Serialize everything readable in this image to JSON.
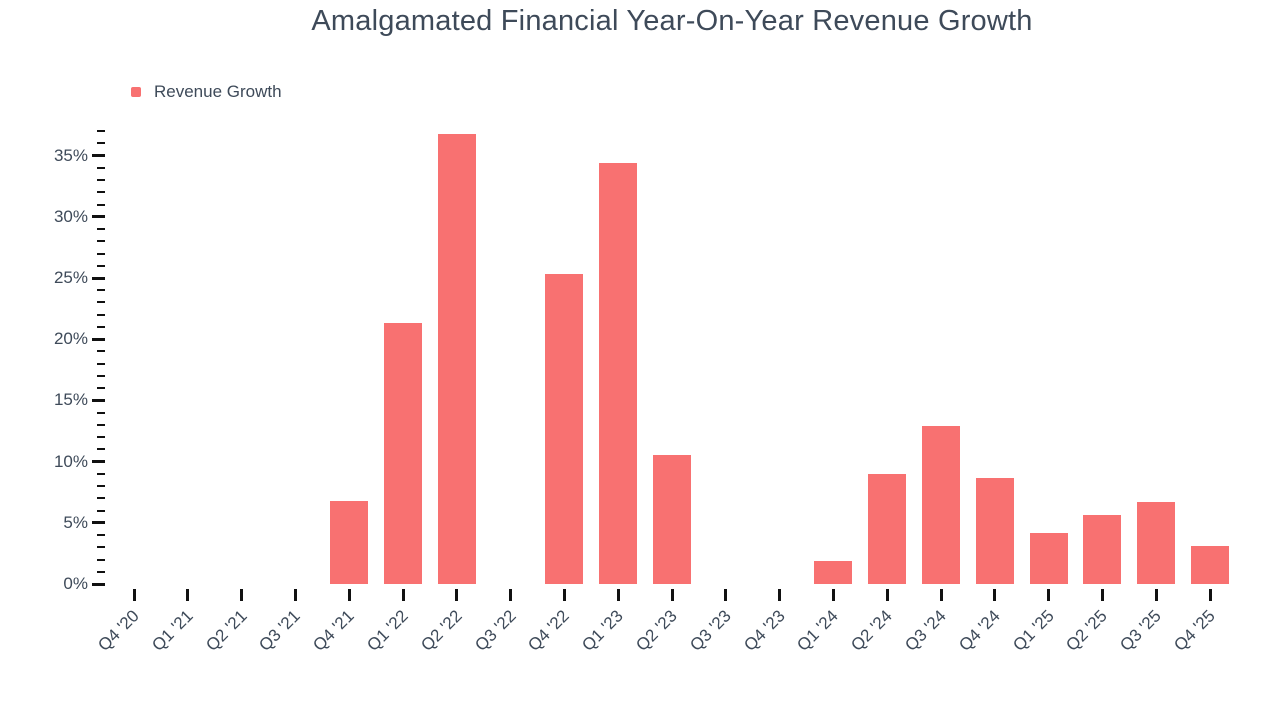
{
  "title": "Amalgamated Financial Year-On-Year Revenue Growth",
  "legend": {
    "label": "Revenue Growth",
    "position": "top-left"
  },
  "colors": {
    "bar": "#f87171",
    "text": "#3e4a59",
    "tick": "#111111",
    "background": "#ffffff"
  },
  "y_axis": {
    "unit": "%",
    "min": 0,
    "max": 37,
    "major_step": 5,
    "minor_step": 1,
    "major_tick_labels": [
      "0%",
      "5%",
      "10%",
      "15%",
      "20%",
      "25%",
      "30%",
      "35%"
    ]
  },
  "chart_data": {
    "type": "bar",
    "title": "Amalgamated Financial Year-On-Year Revenue Growth",
    "xlabel": "",
    "ylabel": "",
    "unit": "%",
    "ylim": [
      0,
      37
    ],
    "grid": false,
    "legend_position": "top-left",
    "categories": [
      "Q4 '20",
      "Q1 '21",
      "Q2 '21",
      "Q3 '21",
      "Q4 '21",
      "Q1 '22",
      "Q2 '22",
      "Q3 '22",
      "Q4 '22",
      "Q1 '23",
      "Q2 '23",
      "Q3 '23",
      "Q4 '23",
      "Q1 '24",
      "Q2 '24",
      "Q3 '24",
      "Q4 '24",
      "Q1 '25",
      "Q2 '25",
      "Q3 '25",
      "Q4 '25"
    ],
    "series": [
      {
        "name": "Revenue Growth",
        "values": [
          null,
          null,
          null,
          null,
          6.8,
          21.3,
          36.8,
          null,
          25.3,
          34.4,
          10.5,
          null,
          null,
          1.9,
          9.0,
          12.9,
          8.7,
          4.2,
          5.6,
          6.7,
          3.1
        ]
      }
    ]
  }
}
